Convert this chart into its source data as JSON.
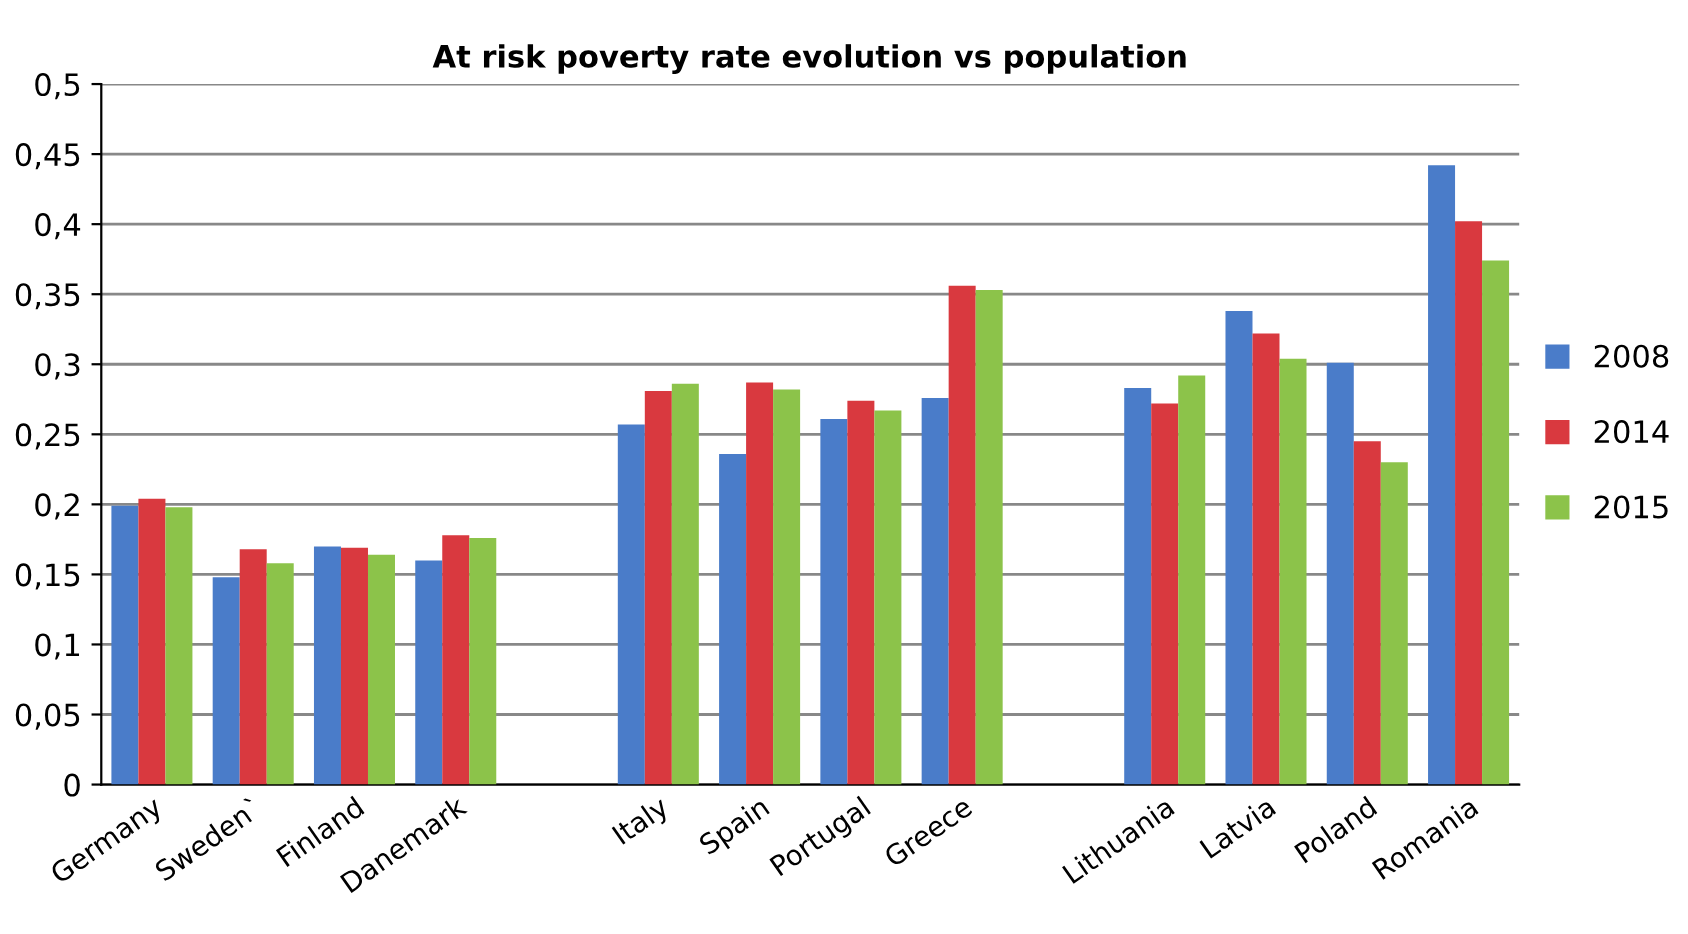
{
  "chart_data": {
    "type": "bar",
    "title": "At risk poverty rate evolution vs population",
    "categories": [
      "Germany",
      "Sweden`",
      "Finland",
      "Danemark",
      null,
      "Italy",
      "Spain",
      "Portugal",
      "Greece",
      null,
      "Lithuania",
      "Latvia",
      "Poland",
      "Romania"
    ],
    "series": [
      {
        "name": "2008",
        "color": "#4a7cc9",
        "values": [
          0.199,
          0.148,
          0.17,
          0.16,
          null,
          0.257,
          0.236,
          0.261,
          0.276,
          null,
          0.283,
          0.338,
          0.301,
          0.442
        ]
      },
      {
        "name": "2014",
        "color": "#d9393f",
        "values": [
          0.204,
          0.168,
          0.169,
          0.178,
          null,
          0.281,
          0.287,
          0.274,
          0.356,
          null,
          0.272,
          0.322,
          0.245,
          0.402
        ]
      },
      {
        "name": "2015",
        "color": "#8cc34a",
        "values": [
          0.198,
          0.158,
          0.164,
          0.176,
          null,
          0.286,
          0.282,
          0.267,
          0.353,
          null,
          0.292,
          0.304,
          0.23,
          0.374
        ]
      }
    ],
    "ylim": [
      0,
      0.5
    ],
    "yticks": [
      0,
      {
        "value": 0.05,
        "label": "0,05"
      },
      {
        "value": 0.1,
        "label": "0,1"
      },
      {
        "value": 0.15,
        "label": "0,15"
      },
      {
        "value": 0.2,
        "label": "0,2"
      },
      {
        "value": 0.25,
        "label": "0,25"
      },
      {
        "value": 0.3,
        "label": "0,3"
      },
      {
        "value": 0.35,
        "label": "0,35"
      },
      {
        "value": 0.4,
        "label": "0,4"
      },
      {
        "value": 0.45,
        "label": "0,45"
      },
      {
        "value": 0.5,
        "label": "0,5"
      }
    ],
    "grid": "y",
    "legend": "right"
  }
}
